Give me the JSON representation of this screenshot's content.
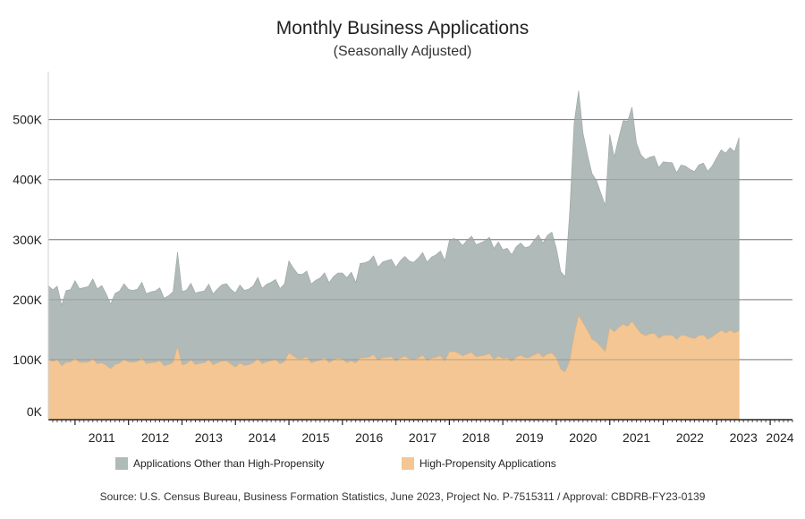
{
  "title": "Monthly Business Applications",
  "subtitle": "(Seasonally Adjusted)",
  "source": "Source: U.S. Census Bureau, Business Formation Statistics, June 2023, Project No. P-7515311 / Approval: CBDRB-FY23-0139",
  "colors": {
    "other": "#b0bab8",
    "high": "#f4c693",
    "grid": "#7a7a7a",
    "axis": "#222222"
  },
  "chart_data": {
    "type": "area",
    "stacked": true,
    "x_start": "2010-07",
    "x_end": "2023-06",
    "xlim": [
      "2010-07",
      "2024-06"
    ],
    "ylim": [
      0,
      580000
    ],
    "yticks": [
      0,
      100000,
      200000,
      300000,
      400000,
      500000
    ],
    "ytick_labels": [
      "0K",
      "100K",
      "200K",
      "300K",
      "400K",
      "500K"
    ],
    "xtick_labels": [
      "2011",
      "2012",
      "2013",
      "2014",
      "2015",
      "2016",
      "2017",
      "2018",
      "2019",
      "2020",
      "2021",
      "2022",
      "2023",
      "2024"
    ],
    "grid": "horizontal",
    "legend_position": "bottom",
    "series": [
      {
        "name": "High-Propensity Applications",
        "anchors": [
          [
            "2010-07",
            100000
          ],
          [
            "2010-09",
            97000
          ],
          [
            "2010-10",
            88000
          ],
          [
            "2010-11",
            98000
          ],
          [
            "2011-07",
            96000
          ],
          [
            "2011-09",
            82000
          ],
          [
            "2011-10",
            95000
          ],
          [
            "2012-03",
            98000
          ],
          [
            "2012-11",
            92000
          ],
          [
            "2012-12",
            120000
          ],
          [
            "2013-01",
            94000
          ],
          [
            "2013-06",
            95000
          ],
          [
            "2013-12",
            96000
          ],
          [
            "2014-01",
            88000
          ],
          [
            "2014-06",
            97000
          ],
          [
            "2014-12",
            97000
          ],
          [
            "2015-01",
            108000
          ],
          [
            "2015-06",
            98000
          ],
          [
            "2015-12",
            100000
          ],
          [
            "2016-03",
            98000
          ],
          [
            "2016-04",
            90000
          ],
          [
            "2016-05",
            105000
          ],
          [
            "2016-12",
            102000
          ],
          [
            "2017-12",
            103000
          ],
          [
            "2018-01",
            112000
          ],
          [
            "2018-06",
            108000
          ],
          [
            "2018-12",
            105000
          ],
          [
            "2019-01",
            100000
          ],
          [
            "2019-06",
            105000
          ],
          [
            "2019-12",
            110000
          ],
          [
            "2020-01",
            100000
          ],
          [
            "2020-03",
            78000
          ],
          [
            "2020-04",
            95000
          ],
          [
            "2020-05",
            140000
          ],
          [
            "2020-06",
            177000
          ],
          [
            "2020-07",
            160000
          ],
          [
            "2020-08",
            145000
          ],
          [
            "2020-10",
            130000
          ],
          [
            "2020-12",
            110000
          ],
          [
            "2021-01",
            158000
          ],
          [
            "2021-02",
            145000
          ],
          [
            "2021-04",
            158000
          ],
          [
            "2021-06",
            162000
          ],
          [
            "2021-07",
            150000
          ],
          [
            "2021-09",
            142000
          ],
          [
            "2021-12",
            140000
          ],
          [
            "2022-06",
            138000
          ],
          [
            "2022-12",
            138000
          ],
          [
            "2023-03",
            150000
          ],
          [
            "2023-05",
            143000
          ],
          [
            "2023-06",
            148000
          ]
        ]
      },
      {
        "name": "Applications Other than High-Propensity",
        "anchors": [
          [
            "2010-07",
            123000
          ],
          [
            "2010-09",
            120000
          ],
          [
            "2010-10",
            100000
          ],
          [
            "2010-11",
            122000
          ],
          [
            "2011-07",
            130000
          ],
          [
            "2011-09",
            105000
          ],
          [
            "2011-10",
            122000
          ],
          [
            "2012-03",
            122000
          ],
          [
            "2012-11",
            115000
          ],
          [
            "2012-12",
            158000
          ],
          [
            "2013-01",
            125000
          ],
          [
            "2013-06",
            120000
          ],
          [
            "2013-12",
            128000
          ],
          [
            "2014-01",
            125000
          ],
          [
            "2014-06",
            130000
          ],
          [
            "2014-12",
            130000
          ],
          [
            "2015-01",
            150000
          ],
          [
            "2015-06",
            135000
          ],
          [
            "2015-12",
            140000
          ],
          [
            "2016-03",
            148000
          ],
          [
            "2016-04",
            130000
          ],
          [
            "2016-05",
            160000
          ],
          [
            "2016-12",
            160000
          ],
          [
            "2017-12",
            172000
          ],
          [
            "2018-01",
            185000
          ],
          [
            "2018-06",
            190000
          ],
          [
            "2018-12",
            190000
          ],
          [
            "2019-01",
            180000
          ],
          [
            "2019-06",
            185000
          ],
          [
            "2019-12",
            200000
          ],
          [
            "2020-01",
            180000
          ],
          [
            "2020-03",
            157000
          ],
          [
            "2020-04",
            245000
          ],
          [
            "2020-05",
            355000
          ],
          [
            "2020-06",
            378000
          ],
          [
            "2020-07",
            315000
          ],
          [
            "2020-08",
            290000
          ],
          [
            "2020-10",
            270000
          ],
          [
            "2020-12",
            240000
          ],
          [
            "2021-01",
            328000
          ],
          [
            "2021-02",
            290000
          ],
          [
            "2021-04",
            338000
          ],
          [
            "2021-06",
            355000
          ],
          [
            "2021-07",
            305000
          ],
          [
            "2021-09",
            295000
          ],
          [
            "2021-12",
            290000
          ],
          [
            "2022-06",
            280000
          ],
          [
            "2022-12",
            285000
          ],
          [
            "2023-03",
            305000
          ],
          [
            "2023-05",
            300000
          ],
          [
            "2023-06",
            322000
          ]
        ]
      }
    ]
  }
}
